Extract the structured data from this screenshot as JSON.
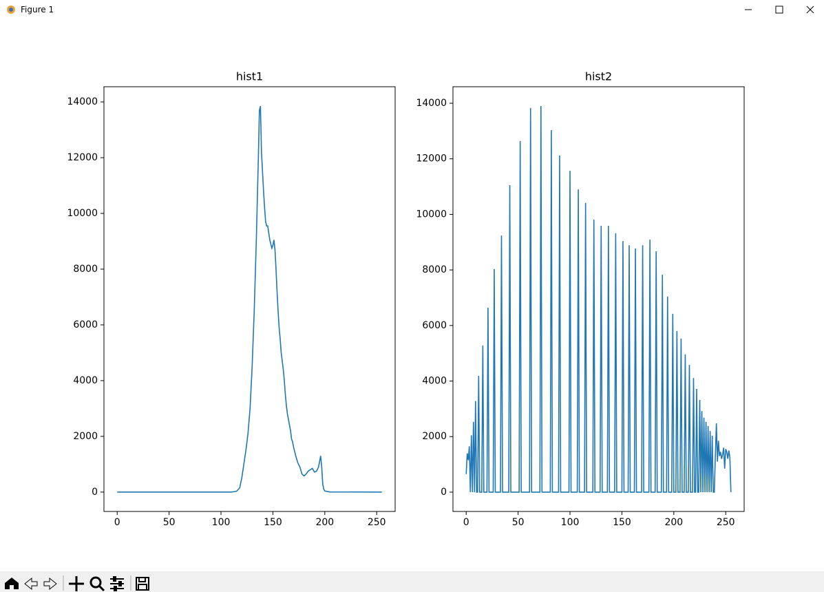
{
  "window": {
    "title": "Figure 1"
  },
  "chart_data": [
    {
      "type": "line",
      "title": "hist1",
      "color": "#1f77b4",
      "x": [
        0,
        110,
        115,
        118,
        120,
        122,
        124,
        126,
        128,
        130,
        132,
        134,
        136,
        137,
        138,
        139,
        140,
        141,
        142,
        143,
        144,
        145,
        146,
        147,
        148,
        149,
        150,
        151,
        152,
        153,
        154,
        155,
        156,
        157,
        158,
        159,
        160,
        161,
        162,
        163,
        164,
        165,
        166,
        167,
        168,
        169,
        170,
        172,
        174,
        176,
        178,
        180,
        182,
        184,
        186,
        188,
        190,
        192,
        194,
        196,
        197,
        198,
        199,
        200,
        205,
        255
      ],
      "values": [
        0,
        0,
        30,
        150,
        500,
        1000,
        1500,
        2100,
        3000,
        4500,
        6500,
        9000,
        12000,
        13700,
        13850,
        12200,
        11500,
        10800,
        10200,
        9700,
        9550,
        9550,
        9300,
        9050,
        8900,
        8750,
        8850,
        9050,
        8700,
        8000,
        7200,
        6500,
        5900,
        5500,
        5000,
        4700,
        4400,
        4000,
        3500,
        3100,
        2800,
        2600,
        2400,
        2200,
        1900,
        1800,
        1600,
        1300,
        1050,
        900,
        650,
        580,
        650,
        750,
        800,
        850,
        720,
        750,
        900,
        1300,
        900,
        300,
        100,
        40,
        5,
        0
      ],
      "xlim": [
        -12.75,
        267.75
      ],
      "ylim": [
        -695,
        14545
      ],
      "xticks": [
        0,
        50,
        100,
        150,
        200,
        250
      ],
      "yticks": [
        0,
        2000,
        4000,
        6000,
        8000,
        10000,
        12000,
        14000
      ]
    },
    {
      "type": "line",
      "title": "hist2",
      "color": "#1f77b4",
      "x": [
        0,
        1,
        2,
        3,
        4,
        5,
        6,
        7,
        8,
        9,
        10,
        11,
        12,
        13,
        15,
        16,
        17,
        20,
        21,
        22,
        26,
        27,
        28,
        33,
        34,
        35,
        41,
        42,
        43,
        51,
        52,
        53,
        61,
        62,
        63,
        71,
        72,
        73,
        81,
        82,
        83,
        89,
        90,
        91,
        99,
        100,
        101,
        107,
        108,
        109,
        114,
        115,
        116,
        122,
        123,
        124,
        129,
        130,
        131,
        136,
        137,
        138,
        143,
        144,
        145,
        150,
        151,
        152,
        156,
        157,
        158,
        162,
        163,
        164,
        169,
        170,
        171,
        176,
        177,
        178,
        182,
        183,
        184,
        188,
        189,
        190,
        193,
        194,
        195,
        198,
        199,
        200,
        202,
        203,
        204,
        206,
        207,
        208,
        210,
        211,
        212,
        214,
        215,
        216,
        218,
        219,
        220,
        221,
        222,
        223,
        224,
        225,
        226,
        227,
        228,
        229,
        230,
        231,
        232,
        233,
        234,
        235,
        236,
        237,
        238,
        239,
        240,
        241,
        242,
        243,
        244,
        245,
        246,
        247,
        248,
        249,
        250,
        251,
        252,
        253,
        254,
        255
      ],
      "values": [
        650,
        1400,
        1150,
        1650,
        0,
        2050,
        0,
        2530,
        0,
        3280,
        0,
        0,
        4190,
        0,
        0,
        5280,
        0,
        0,
        6640,
        0,
        0,
        8030,
        0,
        0,
        9240,
        0,
        0,
        11050,
        0,
        0,
        12640,
        0,
        0,
        13830,
        0,
        0,
        13900,
        0,
        0,
        13030,
        0,
        0,
        12120,
        0,
        0,
        11570,
        0,
        0,
        10900,
        0,
        0,
        10410,
        0,
        0,
        9810,
        0,
        0,
        9590,
        0,
        0,
        9590,
        0,
        0,
        9320,
        0,
        0,
        9040,
        0,
        0,
        8890,
        0,
        0,
        8770,
        0,
        0,
        8890,
        0,
        0,
        9090,
        0,
        0,
        8670,
        0,
        0,
        7830,
        0,
        0,
        7040,
        0,
        0,
        6420,
        0,
        0,
        5800,
        0,
        0,
        5530,
        0,
        0,
        4960,
        0,
        0,
        4580,
        0,
        0,
        4110,
        0,
        0,
        3720,
        0,
        0,
        3320,
        0,
        2920,
        0,
        2680,
        0,
        2530,
        0,
        2380,
        0,
        2200,
        0,
        2030,
        0,
        0,
        1300,
        2480,
        1100,
        1850,
        1300,
        1450,
        1200,
        1350,
        1600,
        850,
        1550,
        1450,
        1200,
        1500,
        1250,
        0
      ],
      "xlim": [
        -12.75,
        267.75
      ],
      "ylim": [
        -695,
        14595
      ],
      "xticks": [
        0,
        50,
        100,
        150,
        200,
        250
      ],
      "yticks": [
        0,
        2000,
        4000,
        6000,
        8000,
        10000,
        12000,
        14000
      ]
    }
  ]
}
